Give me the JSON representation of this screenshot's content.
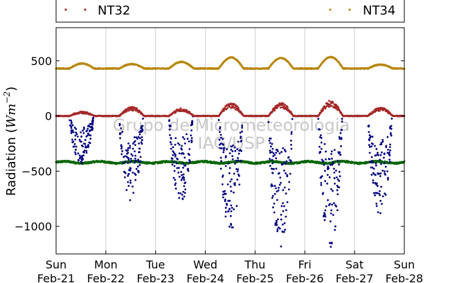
{
  "chart_data": {
    "type": "scatter",
    "ylabel": "Radiation (Wm⁻²)",
    "ylabel_parts": {
      "main": "Radiation (",
      "unit": "Wm",
      "exponent": "−2",
      "close": ")"
    },
    "ylim": [
      -1250,
      800
    ],
    "xlim": [
      "2016-02-21",
      "2016-02-28"
    ],
    "yticks": [
      500,
      0,
      -500,
      -1000
    ],
    "ytick_labels": [
      "500",
      "0",
      "−500",
      "−1000"
    ],
    "xticks": [
      {
        "day": "Sun",
        "date": "Feb-21"
      },
      {
        "day": "Mon",
        "date": "Feb-22"
      },
      {
        "day": "Tue",
        "date": "Feb-23"
      },
      {
        "day": "Wed",
        "date": "Feb-24"
      },
      {
        "day": "Thu",
        "date": "Feb-25"
      },
      {
        "day": "Fri",
        "date": "Feb-26"
      },
      {
        "day": "Sat",
        "date": "Feb-27"
      },
      {
        "day": "Sun",
        "date": "Feb-28"
      }
    ],
    "grid": "vertical",
    "legend_placement": "top",
    "watermark": [
      "Grupo de Micrometeorologia",
      "IAG/USP"
    ],
    "series": [
      {
        "name": "NT32",
        "color": "#a52a2a",
        "baseline": 0,
        "daily_peak": [
          40,
          85,
          70,
          120,
          120,
          140,
          80
        ]
      },
      {
        "name": "NT34",
        "color": "#b8860b",
        "baseline": 430,
        "daily_peak": [
          475,
          470,
          490,
          530,
          525,
          535,
          465
        ]
      },
      {
        "color": "#000080",
        "baseline": 0,
        "daily_min": [
          -430,
          -780,
          -780,
          -1060,
          -1190,
          -1190,
          -900
        ]
      },
      {
        "color": "#006400",
        "baseline": -420,
        "range": [
          -450,
          -390
        ]
      }
    ]
  }
}
